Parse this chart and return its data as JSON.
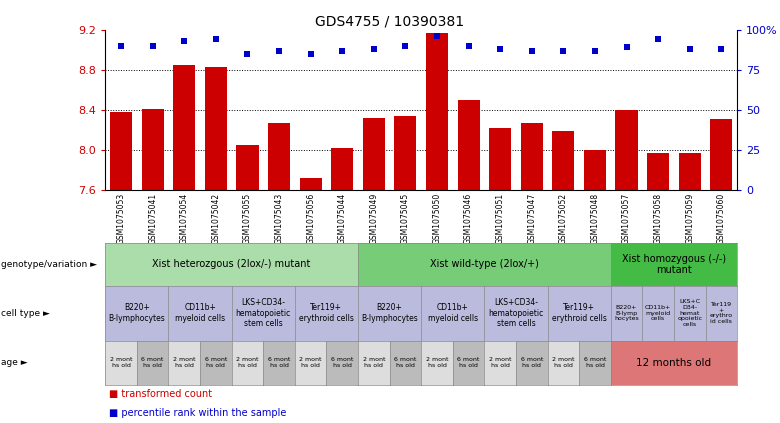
{
  "title": "GDS4755 / 10390381",
  "samples": [
    "GSM1075053",
    "GSM1075041",
    "GSM1075054",
    "GSM1075042",
    "GSM1075055",
    "GSM1075043",
    "GSM1075056",
    "GSM1075044",
    "GSM1075049",
    "GSM1075045",
    "GSM1075050",
    "GSM1075046",
    "GSM1075051",
    "GSM1075047",
    "GSM1075052",
    "GSM1075048",
    "GSM1075057",
    "GSM1075058",
    "GSM1075059",
    "GSM1075060"
  ],
  "bar_values": [
    8.38,
    8.41,
    8.85,
    8.83,
    8.05,
    8.27,
    7.72,
    8.02,
    8.32,
    8.34,
    9.17,
    8.5,
    8.22,
    8.27,
    8.19,
    8.0,
    8.4,
    7.97,
    7.97,
    8.31
  ],
  "dot_values": [
    90,
    90,
    93,
    94,
    85,
    87,
    85,
    87,
    88,
    90,
    96,
    90,
    88,
    87,
    87,
    87,
    89,
    94,
    88,
    88
  ],
  "ylim_left": [
    7.6,
    9.2
  ],
  "ylim_right": [
    0,
    100
  ],
  "yticks_left": [
    7.6,
    8.0,
    8.4,
    8.8,
    9.2
  ],
  "yticks_right": [
    0,
    25,
    50,
    75,
    100
  ],
  "bar_color": "#cc0000",
  "dot_color": "#0000cc",
  "grid_color": "#555555",
  "background_color": "#ffffff",
  "left_tick_color": "#cc0000",
  "right_tick_color": "#0000cc",
  "genotype_groups": [
    {
      "label": "Xist heterozgous (2lox/-) mutant",
      "start": 0,
      "end": 8,
      "color": "#aaddaa"
    },
    {
      "label": "Xist wild-type (2lox/+)",
      "start": 8,
      "end": 16,
      "color": "#77cc77"
    },
    {
      "label": "Xist homozygous (-/-)\nmutant",
      "start": 16,
      "end": 20,
      "color": "#44bb44"
    }
  ],
  "cell_type_groups": [
    {
      "label": "B220+\nB-lymphocytes",
      "start": 0,
      "end": 2,
      "color": "#bbbbdd"
    },
    {
      "label": "CD11b+\nmyeloid cells",
      "start": 2,
      "end": 4,
      "color": "#bbbbdd"
    },
    {
      "label": "LKS+CD34-\nhematopoietic\nstem cells",
      "start": 4,
      "end": 6,
      "color": "#bbbbdd"
    },
    {
      "label": "Ter119+\nerythroid cells",
      "start": 6,
      "end": 8,
      "color": "#bbbbdd"
    },
    {
      "label": "B220+\nB-lymphocytes",
      "start": 8,
      "end": 10,
      "color": "#bbbbdd"
    },
    {
      "label": "CD11b+\nmyeloid cells",
      "start": 10,
      "end": 12,
      "color": "#bbbbdd"
    },
    {
      "label": "LKS+CD34-\nhematopoietic\nstem cells",
      "start": 12,
      "end": 14,
      "color": "#bbbbdd"
    },
    {
      "label": "Ter119+\nerythroid cells",
      "start": 14,
      "end": 16,
      "color": "#bbbbdd"
    },
    {
      "label": "B220+\nB-lymp\nhocytes",
      "start": 16,
      "end": 17,
      "color": "#bbbbdd"
    },
    {
      "label": "CD11b+\nmyeloid\ncells",
      "start": 17,
      "end": 18,
      "color": "#bbbbdd"
    },
    {
      "label": "LKS+C\nD34-\nhemat\nopoietic\ncells",
      "start": 18,
      "end": 19,
      "color": "#bbbbdd"
    },
    {
      "label": "Ter119\n+\nerythro\nid cells",
      "start": 19,
      "end": 20,
      "color": "#bbbbdd"
    }
  ],
  "age_groups_left": [
    {
      "label": "2 mont\nhs old",
      "start": 0,
      "end": 1,
      "color": "#dddddd"
    },
    {
      "label": "6 mont\nhs old",
      "start": 1,
      "end": 2,
      "color": "#bbbbbb"
    },
    {
      "label": "2 mont\nhs old",
      "start": 2,
      "end": 3,
      "color": "#dddddd"
    },
    {
      "label": "6 mont\nhs old",
      "start": 3,
      "end": 4,
      "color": "#bbbbbb"
    },
    {
      "label": "2 mont\nhs old",
      "start": 4,
      "end": 5,
      "color": "#dddddd"
    },
    {
      "label": "6 mont\nhs old",
      "start": 5,
      "end": 6,
      "color": "#bbbbbb"
    },
    {
      "label": "2 mont\nhs old",
      "start": 6,
      "end": 7,
      "color": "#dddddd"
    },
    {
      "label": "6 mont\nhs old",
      "start": 7,
      "end": 8,
      "color": "#bbbbbb"
    },
    {
      "label": "2 mont\nhs old",
      "start": 8,
      "end": 9,
      "color": "#dddddd"
    },
    {
      "label": "6 mont\nhs old",
      "start": 9,
      "end": 10,
      "color": "#bbbbbb"
    },
    {
      "label": "2 mont\nhs old",
      "start": 10,
      "end": 11,
      "color": "#dddddd"
    },
    {
      "label": "6 mont\nhs old",
      "start": 11,
      "end": 12,
      "color": "#bbbbbb"
    },
    {
      "label": "2 mont\nhs old",
      "start": 12,
      "end": 13,
      "color": "#dddddd"
    },
    {
      "label": "6 mont\nhs old",
      "start": 13,
      "end": 14,
      "color": "#bbbbbb"
    },
    {
      "label": "2 mont\nhs old",
      "start": 14,
      "end": 15,
      "color": "#dddddd"
    },
    {
      "label": "6 mont\nhs old",
      "start": 15,
      "end": 16,
      "color": "#bbbbbb"
    }
  ],
  "age_group_right": {
    "label": "12 months old",
    "start": 16,
    "end": 20,
    "color": "#dd7777"
  },
  "legend_items": [
    {
      "color": "#cc0000",
      "label": "transformed count"
    },
    {
      "color": "#0000cc",
      "label": "percentile rank within the sample"
    }
  ]
}
